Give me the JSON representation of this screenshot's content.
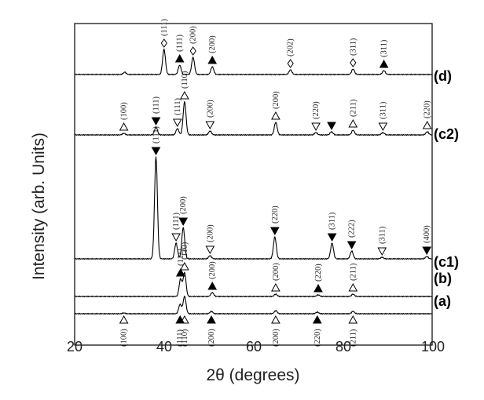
{
  "chart_data": {
    "type": "line",
    "xlabel": "2θ (degrees)",
    "ylabel": "Intensity (arb. Units)",
    "xlim": [
      20,
      100
    ],
    "x_ticks": [
      20,
      40,
      60,
      80,
      100
    ],
    "x_tick_labels": [
      "20",
      "40",
      "60",
      "80",
      "100"
    ],
    "grid": false,
    "legend": "none",
    "series": [
      {
        "name": "(d)",
        "peaks": [
          {
            "x": 31.2,
            "h": 3
          },
          {
            "x": 40.0,
            "h": 32
          },
          {
            "x": 43.5,
            "h": 12
          },
          {
            "x": 46.5,
            "h": 22
          },
          {
            "x": 50.8,
            "h": 10
          },
          {
            "x": 68.3,
            "h": 6
          },
          {
            "x": 82.3,
            "h": 7
          },
          {
            "x": 89.2,
            "h": 5
          }
        ],
        "annotations": [
          {
            "x": 40.0,
            "marker": "diamond",
            "hkl": "(111)"
          },
          {
            "x": 43.5,
            "marker": "filled-up",
            "hkl": "(111)"
          },
          {
            "x": 46.5,
            "marker": "diamond",
            "hkl": "(200)"
          },
          {
            "x": 50.8,
            "marker": "filled-up",
            "hkl": "(200)"
          },
          {
            "x": 68.3,
            "marker": "diamond",
            "hkl": "(202)"
          },
          {
            "x": 82.3,
            "marker": "diamond",
            "hkl": "(311)"
          },
          {
            "x": 89.2,
            "marker": "filled-up",
            "hkl": "(311)"
          }
        ]
      },
      {
        "name": "(c2)",
        "peaks": [
          {
            "x": 31.0,
            "h": 2
          },
          {
            "x": 38.2,
            "h": 10
          },
          {
            "x": 43.0,
            "h": 8
          },
          {
            "x": 44.6,
            "h": 42
          },
          {
            "x": 50.3,
            "h": 5
          },
          {
            "x": 65.0,
            "h": 16
          },
          {
            "x": 74.0,
            "h": 3
          },
          {
            "x": 77.5,
            "h": 4
          },
          {
            "x": 82.3,
            "h": 6
          },
          {
            "x": 89.0,
            "h": 3
          },
          {
            "x": 98.9,
            "h": 4
          }
        ],
        "annotations": [
          {
            "x": 31.0,
            "marker": "open-up",
            "hkl": "(100)"
          },
          {
            "x": 38.2,
            "marker": "filled-down",
            "hkl": "(111)"
          },
          {
            "x": 43.0,
            "marker": "open-down",
            "hkl": "(111)"
          },
          {
            "x": 44.6,
            "marker": "open-up",
            "hkl": "(110)"
          },
          {
            "x": 50.3,
            "marker": "open-down",
            "hkl": "(200)"
          },
          {
            "x": 65.0,
            "marker": "open-up",
            "hkl": "(200)"
          },
          {
            "x": 74.0,
            "marker": "open-down",
            "hkl": "(220)"
          },
          {
            "x": 77.5,
            "marker": "filled-down",
            "hkl": ""
          },
          {
            "x": 82.3,
            "marker": "open-up",
            "hkl": "(211)"
          },
          {
            "x": 89.0,
            "marker": "open-down",
            "hkl": "(311)"
          },
          {
            "x": 98.9,
            "marker": "open-up",
            "hkl": "(220)"
          }
        ]
      },
      {
        "name": "(c1)",
        "peaks": [
          {
            "x": 38.2,
            "h": 130
          },
          {
            "x": 42.7,
            "h": 20
          },
          {
            "x": 44.3,
            "h": 40
          },
          {
            "x": 50.3,
            "h": 4
          },
          {
            "x": 64.8,
            "h": 28
          },
          {
            "x": 77.6,
            "h": 20
          },
          {
            "x": 82.0,
            "h": 10
          },
          {
            "x": 88.8,
            "h": 2
          },
          {
            "x": 98.8,
            "h": 3
          }
        ],
        "annotations": [
          {
            "x": 38.2,
            "marker": "filled-down",
            "hkl": "(111)"
          },
          {
            "x": 42.7,
            "marker": "open-down",
            "hkl": "(111)"
          },
          {
            "x": 44.3,
            "marker": "filled-down",
            "hkl": "(200)"
          },
          {
            "x": 50.3,
            "marker": "open-down",
            "hkl": "(200)"
          },
          {
            "x": 64.8,
            "marker": "filled-down",
            "hkl": "(220)"
          },
          {
            "x": 77.6,
            "marker": "filled-down",
            "hkl": "(311)"
          },
          {
            "x": 82.0,
            "marker": "filled-down",
            "hkl": "(222)"
          },
          {
            "x": 88.8,
            "marker": "open-down",
            "hkl": "(311)"
          },
          {
            "x": 98.8,
            "marker": "filled-down",
            "hkl": "(400)"
          }
        ]
      },
      {
        "name": "(b)",
        "peaks": [
          {
            "x": 43.7,
            "h": 22
          },
          {
            "x": 44.6,
            "h": 30
          },
          {
            "x": 50.8,
            "h": 5
          },
          {
            "x": 65.0,
            "h": 3
          },
          {
            "x": 74.5,
            "h": 2
          },
          {
            "x": 82.3,
            "h": 3
          }
        ],
        "annotations": [
          {
            "x": 43.7,
            "marker": "filled-up",
            "hkl": "(111)"
          },
          {
            "x": 44.6,
            "marker": "open-up",
            "hkl": "(110)"
          },
          {
            "x": 50.8,
            "marker": "filled-up",
            "hkl": "(200)"
          },
          {
            "x": 65.0,
            "marker": "open-up",
            "hkl": "(200)"
          },
          {
            "x": 74.5,
            "marker": "filled-up",
            "hkl": "(220)"
          },
          {
            "x": 82.3,
            "marker": "open-up",
            "hkl": "(211)"
          }
        ]
      },
      {
        "name": "(a)",
        "peaks": [
          {
            "x": 31.0,
            "h": 1
          },
          {
            "x": 43.6,
            "h": 12
          },
          {
            "x": 44.6,
            "h": 22
          },
          {
            "x": 50.6,
            "h": 3
          },
          {
            "x": 65.0,
            "h": 4
          },
          {
            "x": 74.3,
            "h": 2
          },
          {
            "x": 82.3,
            "h": 3
          }
        ],
        "annotations": [
          {
            "x": 31.0,
            "marker": "open-up",
            "hkl": "(100)"
          },
          {
            "x": 43.6,
            "marker": "filled-up",
            "hkl": "(111)"
          },
          {
            "x": 44.6,
            "marker": "open-up",
            "hkl": "(110)"
          },
          {
            "x": 50.6,
            "marker": "filled-up",
            "hkl": "(200)"
          },
          {
            "x": 65.0,
            "marker": "open-up",
            "hkl": "(200)"
          },
          {
            "x": 74.3,
            "marker": "filled-up",
            "hkl": "(220)"
          },
          {
            "x": 82.3,
            "marker": "open-up",
            "hkl": "(211)"
          }
        ]
      }
    ]
  }
}
